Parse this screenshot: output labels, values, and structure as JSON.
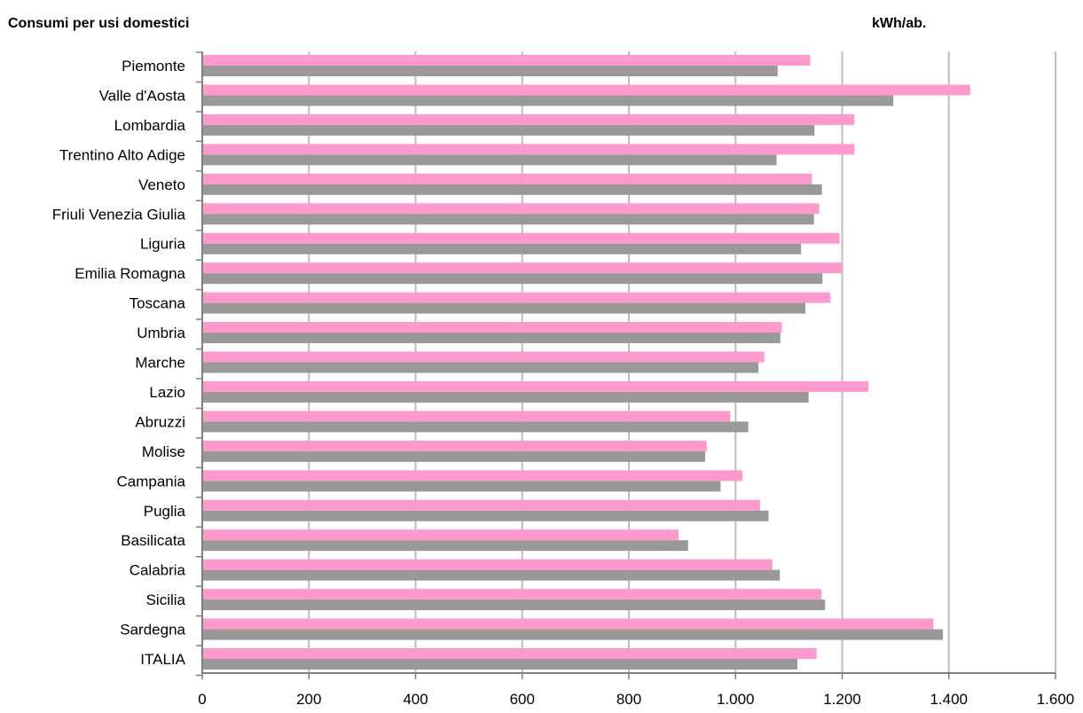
{
  "header": {
    "title": "Consumi per usi domestici",
    "unit": "kWh/ab."
  },
  "chart_data": {
    "type": "bar",
    "orientation": "horizontal",
    "title": "Consumi per usi domestici",
    "xlabel": "kWh/ab.",
    "ylabel": "",
    "xlim": [
      0,
      1600
    ],
    "x_ticks": [
      0,
      200,
      400,
      600,
      800,
      1000,
      1200,
      1400,
      1600
    ],
    "x_tick_labels": [
      "0",
      "200",
      "400",
      "600",
      "800",
      "1.000",
      "1.200",
      "1.400",
      "1.600"
    ],
    "grid": "vertical",
    "legend": "none",
    "categories": [
      "Piemonte",
      "Valle d'Aosta",
      "Lombardia",
      "Trentino Alto Adige",
      "Veneto",
      "Friuli Venezia Giulia",
      "Liguria",
      "Emilia Romagna",
      "Toscana",
      "Umbria",
      "Marche",
      "Lazio",
      "Abruzzi",
      "Molise",
      "Campania",
      "Puglia",
      "Basilicata",
      "Calabria",
      "Sicilia",
      "Sardegna",
      "ITALIA"
    ],
    "series": [
      {
        "color": "#ff99cc",
        "values": [
          1140,
          1440,
          1223,
          1223,
          1143,
          1157,
          1195,
          1200,
          1178,
          1087,
          1054,
          1249,
          990,
          946,
          1013,
          1046,
          893,
          1069,
          1161,
          1371,
          1152
        ]
      },
      {
        "color": "#999999",
        "values": [
          1079,
          1296,
          1148,
          1077,
          1162,
          1147,
          1123,
          1163,
          1131,
          1084,
          1043,
          1137,
          1024,
          943,
          972,
          1062,
          911,
          1083,
          1168,
          1389,
          1116
        ]
      }
    ]
  }
}
